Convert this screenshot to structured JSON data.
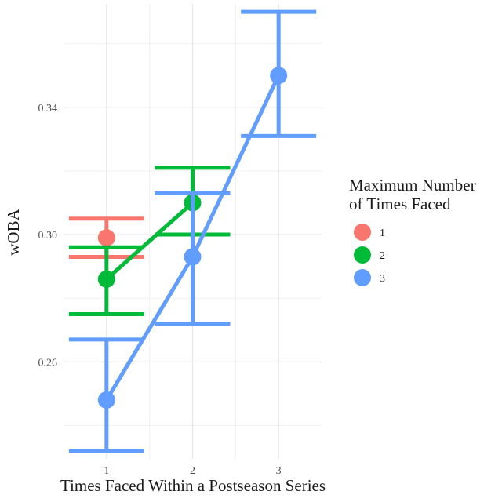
{
  "chart_data": {
    "type": "line",
    "xlabel": "Times Faced Within a Postseason Series",
    "ylabel": "wOBA",
    "x": [
      1,
      2,
      3
    ],
    "xticks": [
      "1",
      "2",
      "3"
    ],
    "yticks": [
      "0.26",
      "0.30",
      "0.34"
    ],
    "ytick_values": [
      0.26,
      0.3,
      0.34
    ],
    "xlim": [
      0.5,
      3.5
    ],
    "ylim": [
      0.2295,
      0.3725
    ],
    "grid": true,
    "legend": {
      "title_line1": "Maximum Number",
      "title_line2": "of Times Faced",
      "placement": "right"
    },
    "series": [
      {
        "name": "1",
        "color": "#F8766D",
        "points": [
          {
            "x": 1,
            "y": 0.299,
            "ymin": 0.293,
            "ymax": 0.305
          }
        ]
      },
      {
        "name": "2",
        "color": "#00BA38",
        "points": [
          {
            "x": 1,
            "y": 0.286,
            "ymin": 0.275,
            "ymax": 0.296
          },
          {
            "x": 2,
            "y": 0.31,
            "ymin": 0.3,
            "ymax": 0.321
          }
        ]
      },
      {
        "name": "3",
        "color": "#619CFF",
        "points": [
          {
            "x": 1,
            "y": 0.248,
            "ymin": 0.232,
            "ymax": 0.267
          },
          {
            "x": 2,
            "y": 0.293,
            "ymin": 0.272,
            "ymax": 0.313
          },
          {
            "x": 3,
            "y": 0.35,
            "ymin": 0.331,
            "ymax": 0.37
          }
        ]
      }
    ]
  }
}
